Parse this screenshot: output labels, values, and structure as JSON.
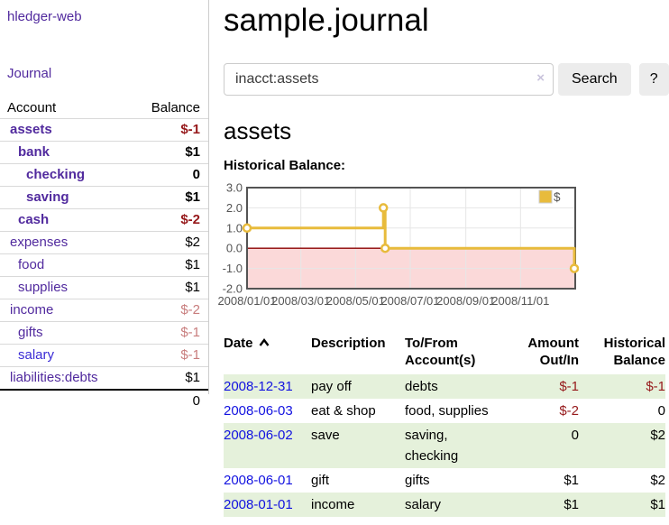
{
  "app": {
    "title": "hledger-web"
  },
  "colors": {
    "purple": "#512A9E",
    "blue_link": "#3A2BD5",
    "date_link": "#1212E0",
    "neg_strong": "#96191B",
    "neg_soft": "#C87D7D",
    "row_green": "#E5F1DB"
  },
  "sidebar": {
    "journal_link": "Journal",
    "col_account": "Account",
    "col_balance": "Balance",
    "accounts": [
      {
        "name": "assets",
        "depth": 1,
        "bold": true,
        "balance": "$-1",
        "balance_style": "neg-strong"
      },
      {
        "name": "bank",
        "depth": 2,
        "bold": true,
        "balance": "$1",
        "balance_style": "normal"
      },
      {
        "name": "checking",
        "depth": 3,
        "bold": true,
        "balance": "0",
        "balance_style": "normal"
      },
      {
        "name": "saving",
        "depth": 3,
        "bold": true,
        "balance": "$1",
        "balance_style": "normal"
      },
      {
        "name": "cash",
        "depth": 2,
        "bold": true,
        "balance": "$-2",
        "balance_style": "neg-strong"
      },
      {
        "name": "expenses",
        "depth": 1,
        "bold": false,
        "balance": "$2",
        "balance_style": "normal"
      },
      {
        "name": "food",
        "depth": 2,
        "bold": false,
        "balance": "$1",
        "balance_style": "normal"
      },
      {
        "name": "supplies",
        "depth": 2,
        "bold": false,
        "balance": "$1",
        "balance_style": "normal"
      },
      {
        "name": "income",
        "depth": 1,
        "bold": false,
        "balance": "$-2",
        "balance_style": "neg-soft"
      },
      {
        "name": "gifts",
        "depth": 2,
        "bold": false,
        "balance": "$-1",
        "balance_style": "neg-soft"
      },
      {
        "name": "salary",
        "depth": 2,
        "bold": false,
        "balance": "$-1",
        "balance_style": "neg-soft",
        "link_style": "blue"
      },
      {
        "name": "liabilities:debts",
        "depth": 1,
        "bold": false,
        "balance": "$1",
        "balance_style": "normal"
      }
    ],
    "total": "0"
  },
  "header": {
    "title": "sample.journal"
  },
  "search": {
    "value": "inacct:assets",
    "clear_icon": "×",
    "button_label": "Search",
    "help_label": "?"
  },
  "account_page": {
    "heading": "assets",
    "chart_label": "Historical Balance:"
  },
  "chart_data": {
    "type": "line",
    "step": true,
    "title": "Historical Balance",
    "series": [
      {
        "name": "$",
        "color": "#E8BB3C",
        "points": [
          [
            "2008-01-01",
            1
          ],
          [
            "2008-06-01",
            2
          ],
          [
            "2008-06-03",
            0
          ],
          [
            "2008-12-31",
            -1
          ]
        ]
      }
    ],
    "x_range": [
      "2008-01-01",
      "2009-01-01"
    ],
    "x_ticks": [
      "2008/01/01",
      "2008/03/01",
      "2008/05/01",
      "2008/07/01",
      "2008/09/01",
      "2008/11/01"
    ],
    "y_ticks": [
      -2,
      -1,
      0,
      1,
      2,
      3
    ],
    "y_tick_labels": [
      "-2.0",
      "-1.0",
      "0.0",
      "1.0",
      "2.0",
      "3.0"
    ],
    "ylim": [
      -2,
      3
    ],
    "grid": true,
    "legend_position": "top-right",
    "legend_label": "$",
    "negative_fill": "#FBD9D9",
    "zero_line_color": "#8B0000",
    "grid_color": "#E6E6E6",
    "border_color": "#545454",
    "axis_text_color": "#545454",
    "marker_fill": "#FFFFFF"
  },
  "register": {
    "columns": {
      "date": "Date",
      "description": "Description",
      "tofrom_1": "To/From",
      "tofrom_2": "Account(s)",
      "amount_1": "Amount",
      "amount_2": "Out/In",
      "balance_1": "Historical",
      "balance_2": "Balance"
    },
    "rows": [
      {
        "date": "2008-12-31",
        "description": "pay off",
        "account_lines": [
          "debts"
        ],
        "amount": "$-1",
        "amount_neg": true,
        "balance": "$-1",
        "balance_neg": true,
        "shaded": true
      },
      {
        "date": "2008-06-03",
        "description": "eat & shop",
        "account_lines": [
          "food, supplies"
        ],
        "amount": "$-2",
        "amount_neg": true,
        "balance": "0",
        "balance_neg": false,
        "shaded": false
      },
      {
        "date": "2008-06-02",
        "description": "save",
        "account_lines": [
          "saving,",
          "checking"
        ],
        "amount": "0",
        "amount_neg": false,
        "balance": "$2",
        "balance_neg": false,
        "shaded": true
      },
      {
        "date": "2008-06-01",
        "description": "gift",
        "account_lines": [
          "gifts"
        ],
        "amount": "$1",
        "amount_neg": false,
        "balance": "$2",
        "balance_neg": false,
        "shaded": false
      },
      {
        "date": "2008-01-01",
        "description": "income",
        "account_lines": [
          "salary"
        ],
        "amount": "$1",
        "amount_neg": false,
        "balance": "$1",
        "balance_neg": false,
        "shaded": true
      }
    ]
  }
}
